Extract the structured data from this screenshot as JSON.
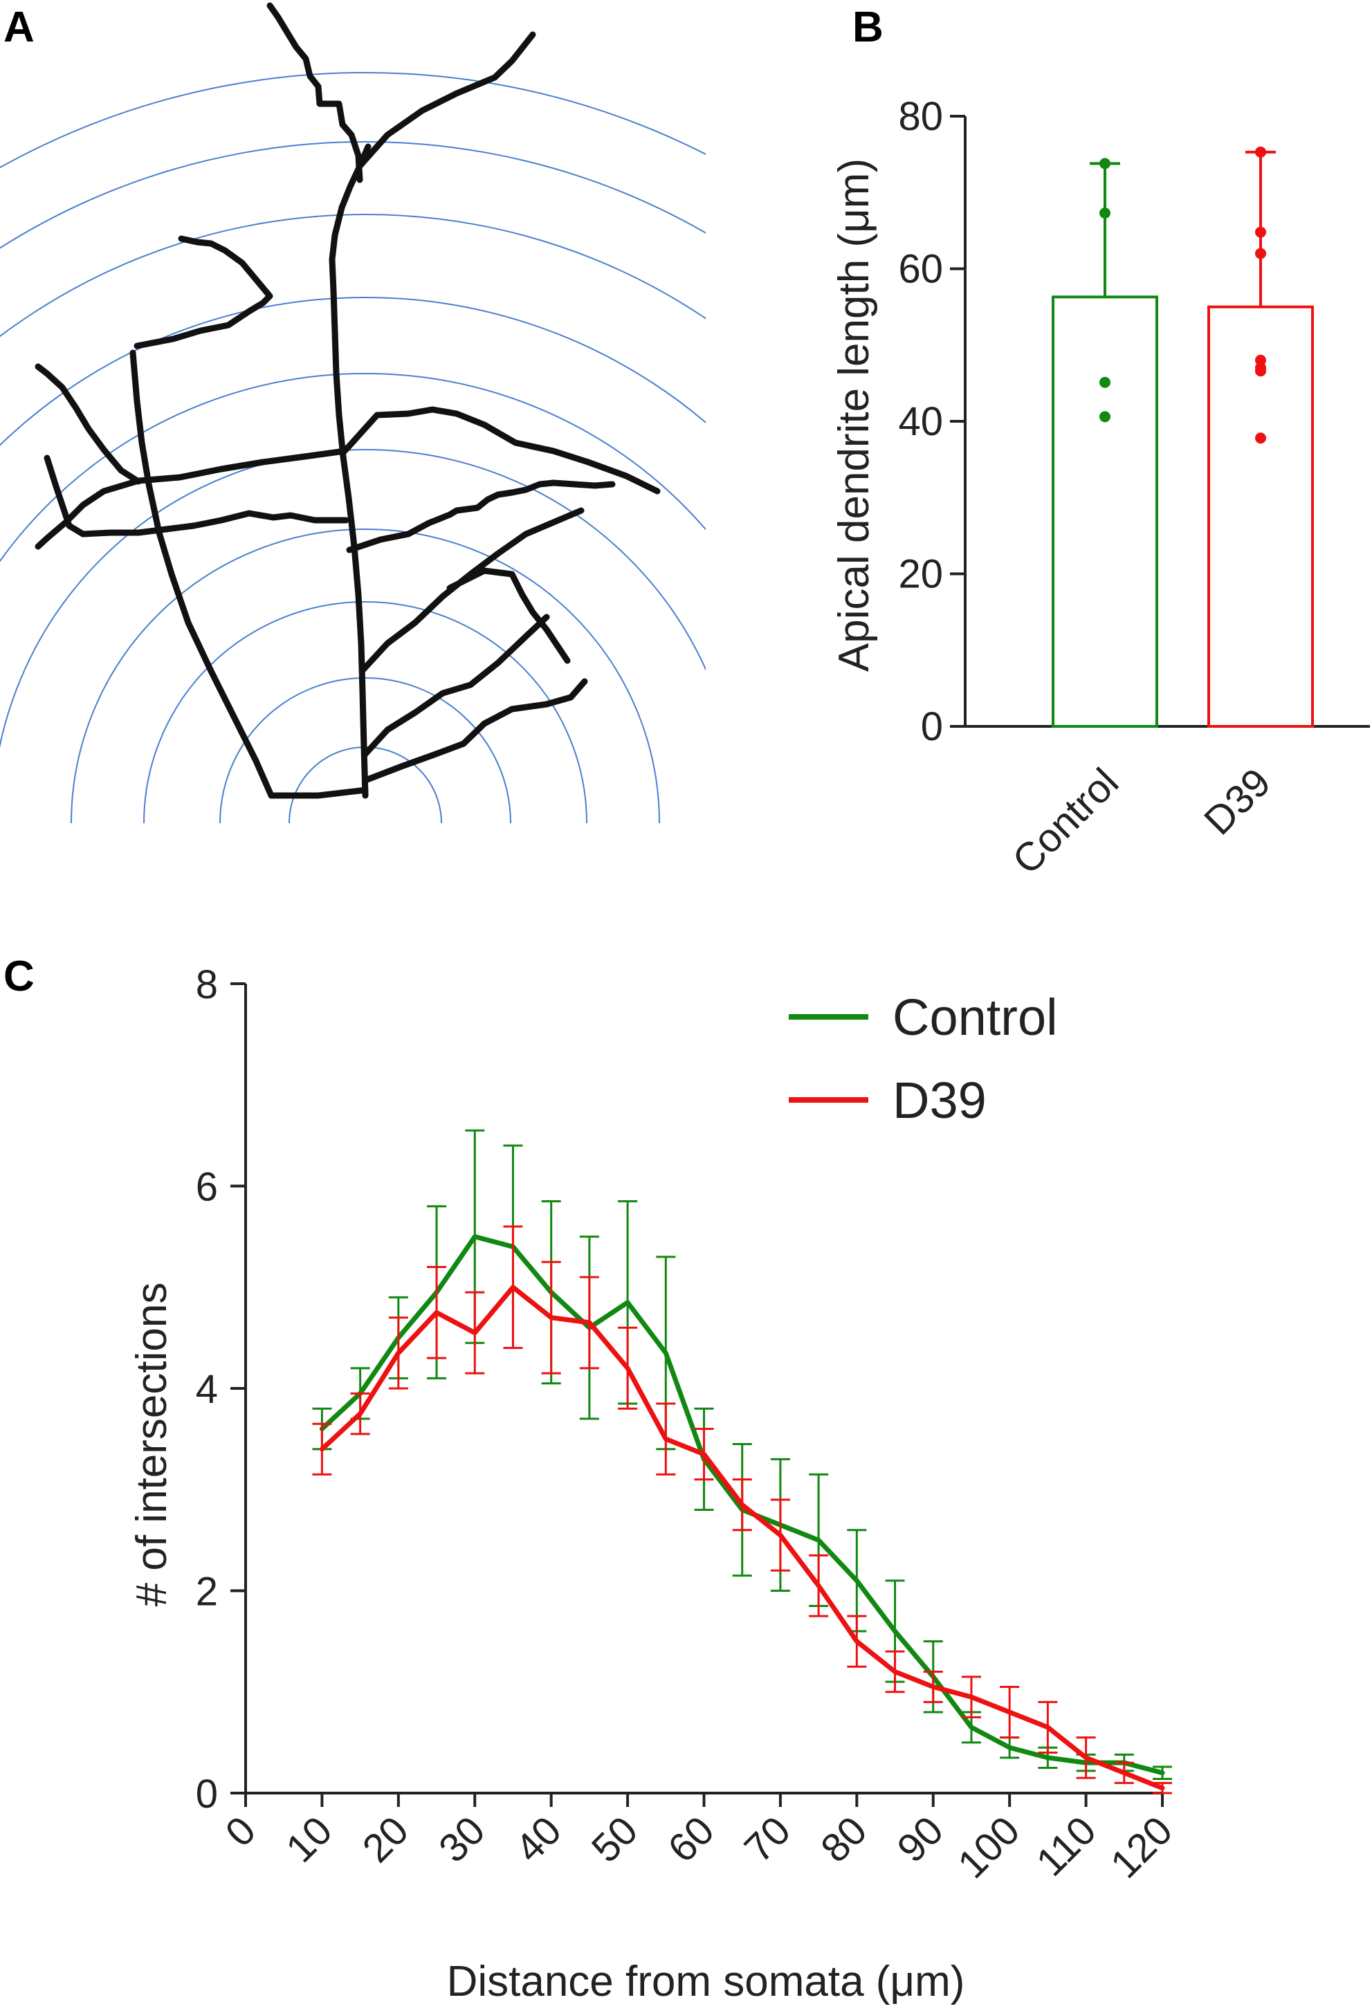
{
  "panels": {
    "a": {
      "letter": "A"
    },
    "b": {
      "letter": "B"
    },
    "c": {
      "letter": "C"
    }
  },
  "colors": {
    "control": "#118811",
    "d39": "#ee1111",
    "axis": "#222222",
    "sholl_rings": "#4a7fd0"
  },
  "chart_data": [
    {
      "panel": "B",
      "type": "bar",
      "ylabel": "Apical dendrite length (μm)",
      "ylim": [
        0,
        80
      ],
      "yticks": [
        0,
        20,
        40,
        60,
        80
      ],
      "categories": [
        "Control",
        "D39"
      ],
      "values": [
        56.3,
        55.0
      ],
      "error_upper": [
        73.8,
        75.3
      ],
      "points": [
        [
          73.8,
          67.3,
          45.1,
          40.6
        ],
        [
          75.3,
          64.8,
          62.0,
          48.0,
          47.0,
          46.6,
          37.8
        ]
      ],
      "series_colors": [
        "#118811",
        "#ee1111"
      ]
    },
    {
      "panel": "C",
      "type": "line",
      "xlabel": "Distance from somata (μm)",
      "ylabel": "# of intersections",
      "xlim": [
        0,
        120
      ],
      "ylim": [
        0,
        8
      ],
      "xticks": [
        0,
        10,
        20,
        30,
        40,
        50,
        60,
        70,
        80,
        90,
        100,
        110,
        120
      ],
      "yticks": [
        0,
        2,
        4,
        6,
        8
      ],
      "legend_position": "top-right",
      "x": [
        10,
        15,
        20,
        25,
        30,
        35,
        40,
        45,
        50,
        55,
        60,
        65,
        70,
        75,
        80,
        85,
        90,
        95,
        100,
        105,
        110,
        115,
        120
      ],
      "series": [
        {
          "name": "Control",
          "color": "#118811",
          "values": [
            3.6,
            3.95,
            4.5,
            4.95,
            5.5,
            5.4,
            4.95,
            4.6,
            4.85,
            4.35,
            3.3,
            2.8,
            2.65,
            2.5,
            2.1,
            1.6,
            1.15,
            0.65,
            0.45,
            0.35,
            0.3,
            0.3,
            0.2
          ],
          "errors": [
            0.2,
            0.25,
            0.4,
            0.85,
            1.05,
            1.0,
            0.9,
            0.9,
            1.0,
            0.95,
            0.5,
            0.65,
            0.65,
            0.65,
            0.5,
            0.5,
            0.35,
            0.15,
            0.1,
            0.1,
            0.08,
            0.08,
            0.06
          ]
        },
        {
          "name": "D39",
          "color": "#ee1111",
          "values": [
            3.4,
            3.75,
            4.35,
            4.75,
            4.55,
            5.0,
            4.7,
            4.65,
            4.2,
            3.5,
            3.35,
            2.85,
            2.55,
            2.05,
            1.5,
            1.2,
            1.05,
            0.95,
            0.8,
            0.65,
            0.35,
            0.2,
            0.05
          ],
          "errors": [
            0.25,
            0.2,
            0.35,
            0.45,
            0.4,
            0.6,
            0.55,
            0.45,
            0.4,
            0.35,
            0.25,
            0.25,
            0.35,
            0.3,
            0.25,
            0.2,
            0.15,
            0.2,
            0.25,
            0.25,
            0.2,
            0.1,
            0.05
          ]
        }
      ]
    }
  ]
}
